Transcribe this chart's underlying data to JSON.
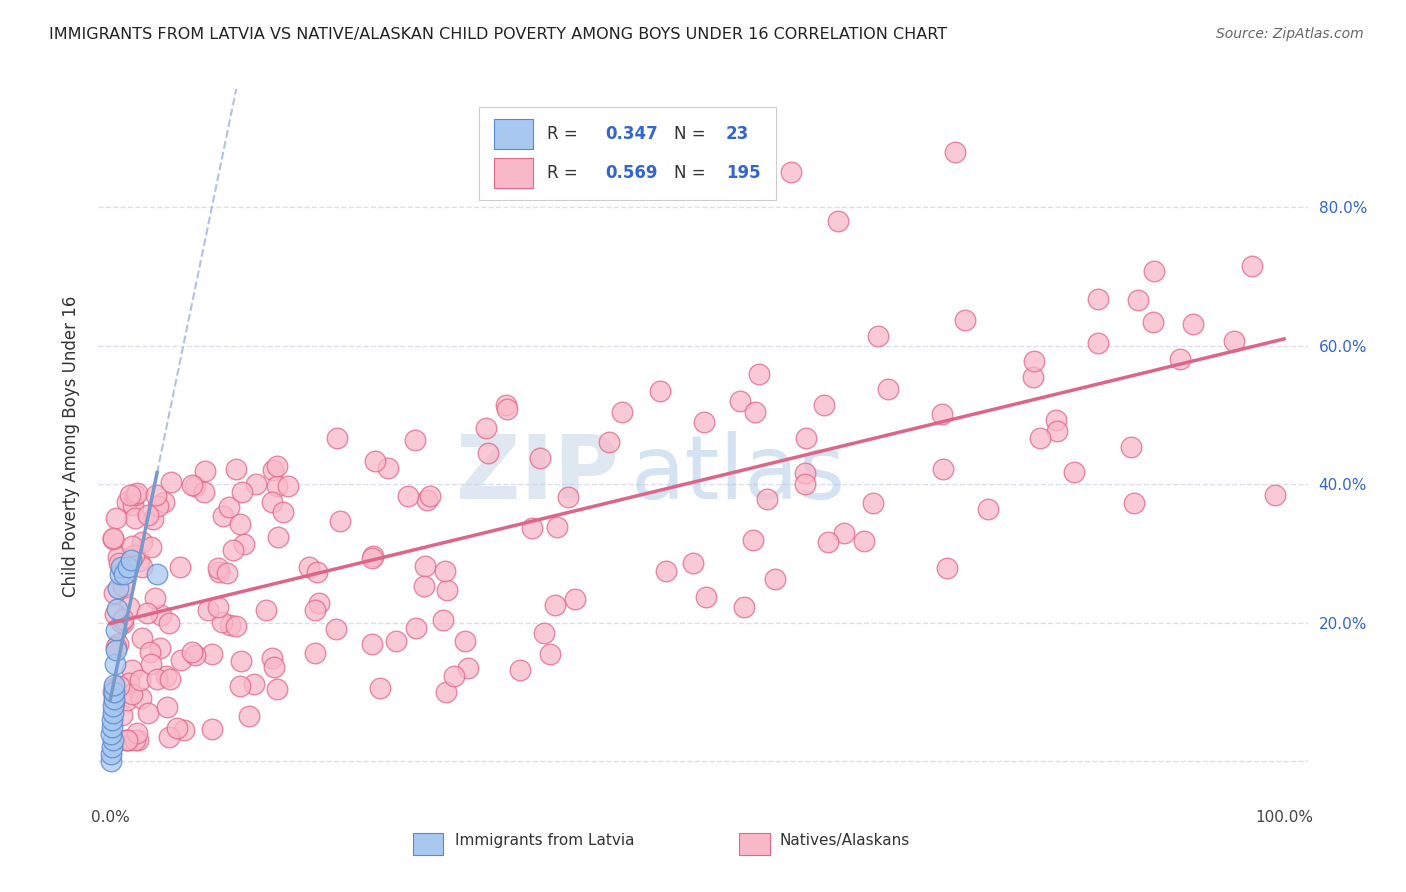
{
  "title": "IMMIGRANTS FROM LATVIA VS NATIVE/ALASKAN CHILD POVERTY AMONG BOYS UNDER 16 CORRELATION CHART",
  "source": "Source: ZipAtlas.com",
  "ylabel": "Child Poverty Among Boys Under 16",
  "r_latvia": "0.347",
  "n_latvia": "23",
  "r_native": "0.569",
  "n_native": "195",
  "color_latvia_fill": "#a8c8f0",
  "color_latvia_edge": "#5588cc",
  "color_native_fill": "#f8b8c8",
  "color_native_edge": "#e06888",
  "color_line_latvia": "#7799cc",
  "color_line_native": "#dd6688",
  "color_dashed": "#aabbdd",
  "color_watermark_zip": "#c8d4e8",
  "color_watermark_atlas": "#a8c8e8",
  "color_grid": "#ddddee",
  "color_right_ticks": "#3366cc",
  "background_color": "#ffffff",
  "legend_text_color": "#3366cc",
  "legend_label_color": "#333333",
  "bottom_legend_color": "#333333"
}
